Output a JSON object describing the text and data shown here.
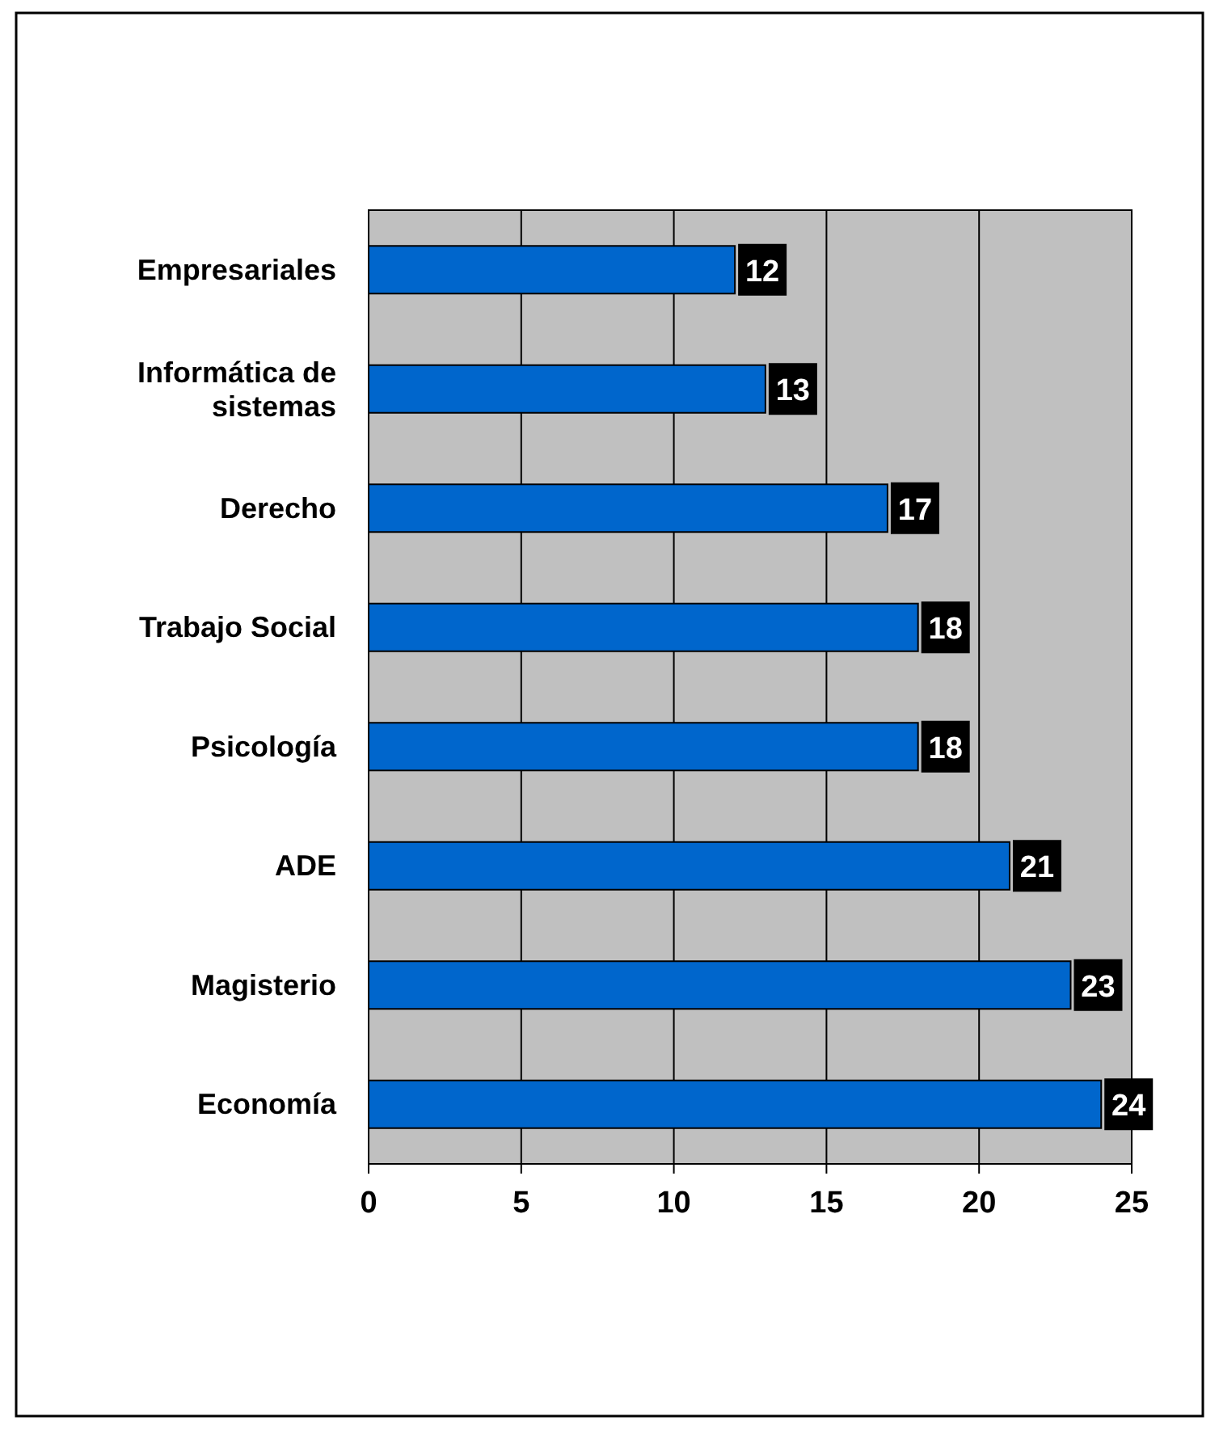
{
  "chart_data": {
    "type": "bar",
    "orientation": "horizontal",
    "categories": [
      "Empresariales",
      "Informática de sistemas",
      "Derecho",
      "Trabajo Social",
      "Psicología",
      "ADE",
      "Magisterio",
      "Economía"
    ],
    "values": [
      12,
      13,
      17,
      18,
      18,
      21,
      23,
      24
    ],
    "color": "#0066cc",
    "xlim": [
      0,
      25
    ],
    "xticks": [
      0,
      5,
      10,
      15,
      20,
      25
    ],
    "grid": "x",
    "data_labels": true
  }
}
